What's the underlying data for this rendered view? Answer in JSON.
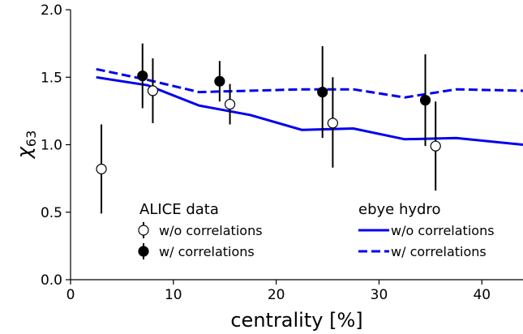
{
  "chart_data": {
    "type": "line",
    "xlabel": "centrality [%]",
    "ylabel_main": "χ",
    "ylabel_sub": "63",
    "xlim": [
      0,
      44
    ],
    "ylim": [
      0.0,
      2.0
    ],
    "xticks": [
      0,
      10,
      20,
      30,
      40
    ],
    "xtick_labels": [
      "0",
      "10",
      "20",
      "30",
      "40"
    ],
    "yticks": [
      0.0,
      0.5,
      1.0,
      1.5,
      2.0
    ],
    "ytick_labels": [
      "0.0",
      "0.5",
      "1.0",
      "1.5",
      "2.0"
    ],
    "grid": false,
    "points": [
      {
        "name": "w/o correlations",
        "fill": "#ffffff",
        "data": [
          {
            "x": 3.0,
            "y": 0.82,
            "lo": 0.49,
            "hi": 1.15
          },
          {
            "x": 8.0,
            "y": 1.4,
            "lo": 1.16,
            "hi": 1.64
          },
          {
            "x": 15.5,
            "y": 1.3,
            "lo": 1.15,
            "hi": 1.45
          },
          {
            "x": 25.5,
            "y": 1.16,
            "lo": 0.83,
            "hi": 1.5
          },
          {
            "x": 35.5,
            "y": 0.99,
            "lo": 0.66,
            "hi": 1.32
          }
        ]
      },
      {
        "name": "w/ correlations",
        "fill": "#000000",
        "data": [
          {
            "x": 7.0,
            "y": 1.51,
            "lo": 1.27,
            "hi": 1.75
          },
          {
            "x": 14.5,
            "y": 1.47,
            "lo": 1.32,
            "hi": 1.62
          },
          {
            "x": 24.5,
            "y": 1.39,
            "lo": 1.05,
            "hi": 1.73
          },
          {
            "x": 34.5,
            "y": 1.33,
            "lo": 0.99,
            "hi": 1.67
          }
        ]
      }
    ],
    "lines": [
      {
        "name": "w/o correlations",
        "color": "#0000ee",
        "dash": "solid",
        "x": [
          2.5,
          7.5,
          12.5,
          17.5,
          22.5,
          27.5,
          32.5,
          37.5,
          44.0
        ],
        "y": [
          1.5,
          1.44,
          1.29,
          1.22,
          1.11,
          1.12,
          1.04,
          1.05,
          1.0
        ]
      },
      {
        "name": "w/ correlations",
        "color": "#0000ee",
        "dash": "dashed",
        "x": [
          2.5,
          7.5,
          12.5,
          17.5,
          22.5,
          27.5,
          32.5,
          37.5,
          44.0
        ],
        "y": [
          1.56,
          1.48,
          1.39,
          1.4,
          1.41,
          1.41,
          1.35,
          1.41,
          1.4
        ]
      }
    ],
    "legend": {
      "data_title": "ALICE data",
      "data_items": [
        "w/o correlations",
        "w/ correlations"
      ],
      "hydro_title": "ebye hydro",
      "hydro_items": [
        "w/o correlations",
        "w/ correlations"
      ],
      "placement": "bottom"
    }
  }
}
